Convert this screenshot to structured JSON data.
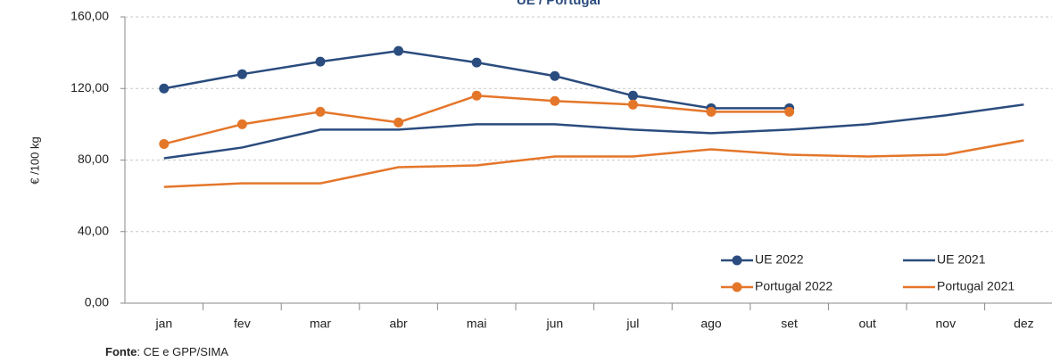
{
  "chart_data": {
    "type": "line",
    "title": "UE / Portugal",
    "y_label": "€ /100 kg",
    "categories": [
      "jan",
      "fev",
      "mar",
      "abr",
      "mai",
      "jun",
      "jul",
      "ago",
      "set",
      "out",
      "nov",
      "dez"
    ],
    "series": [
      {
        "name": "UE 2022",
        "color": "#2b4c7e",
        "marker": true,
        "values": [
          120,
          128,
          135,
          141,
          134.5,
          127,
          116,
          109,
          109,
          null,
          null,
          null
        ]
      },
      {
        "name": "UE 2021",
        "color": "#2b4c7e",
        "marker": false,
        "values": [
          81,
          87,
          97,
          97,
          100,
          100,
          97,
          95,
          97,
          100,
          105,
          111
        ]
      },
      {
        "name": "Portugal 2022",
        "color": "#e4762a",
        "marker": true,
        "values": [
          89,
          100,
          107,
          101,
          116,
          113,
          111,
          107,
          107,
          null,
          null,
          null
        ]
      },
      {
        "name": "Portugal 2021",
        "color": "#e4762a",
        "marker": false,
        "values": [
          65,
          67,
          67,
          76,
          77,
          82,
          82,
          86,
          83,
          82,
          83,
          91
        ]
      }
    ],
    "ylim": [
      0,
      160
    ],
    "yticks": [
      {
        "value": 0,
        "label": "0,00"
      },
      {
        "value": 40,
        "label": "40,00"
      },
      {
        "value": 80,
        "label": "80,00"
      },
      {
        "value": 120,
        "label": "120,00"
      },
      {
        "value": 160,
        "label": "160,00"
      }
    ],
    "grid": true,
    "legend": "lower-right",
    "source_label": "Fonte",
    "source_text": ": CE e GPP/SIMA"
  }
}
